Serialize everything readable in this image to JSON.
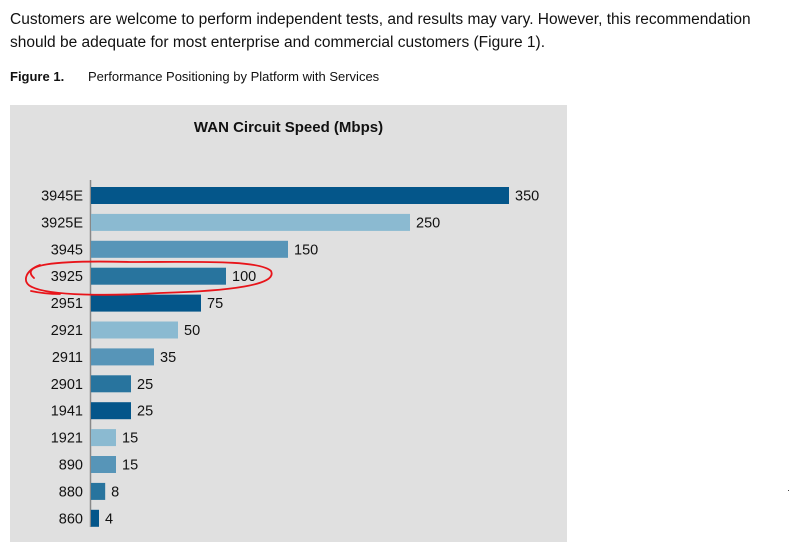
{
  "document": {
    "paragraph": "Customers are welcome to perform independent tests, and results may vary. However, this recommendation should be adequate for most enterprise and commercial customers (Figure 1).",
    "figure_number": "Figure 1.",
    "figure_caption": "Performance Positioning by Platform with Services"
  },
  "chart_data": {
    "type": "bar",
    "orientation": "horizontal",
    "title": "WAN Circuit Speed (Mbps)",
    "categories": [
      "3945E",
      "3925E",
      "3945",
      "3925",
      "2951",
      "2921",
      "2911",
      "2901",
      "1941",
      "1921",
      "890",
      "880",
      "860"
    ],
    "values": [
      350,
      250,
      150,
      100,
      75,
      50,
      35,
      25,
      25,
      15,
      15,
      8,
      4
    ],
    "bar_colors": [
      "#04568a",
      "#8bbad1",
      "#5795b8",
      "#28749e",
      "#04568a",
      "#8bbad1",
      "#5795b8",
      "#28749e",
      "#04568a",
      "#8bbad1",
      "#5795b8",
      "#28749e",
      "#04568a"
    ],
    "data_labels": true,
    "grid": false,
    "background": "#e0e0e0",
    "annotation": {
      "type": "hand-drawn red ellipse",
      "target": "3925",
      "color": "#e8141a"
    }
  }
}
